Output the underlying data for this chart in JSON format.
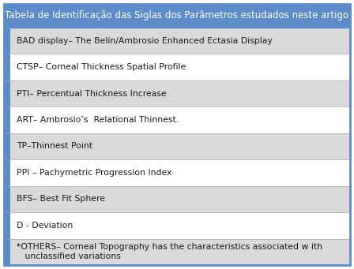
{
  "title": "Tabela de Identificação das Siglas dos Parâmetros estudados neste artigo",
  "title_bg": "#5b8bc9",
  "title_color": "#ffffff",
  "left_bar_color": "#5b8bc9",
  "rows": [
    {
      "text": "BAD display– The Belin/Ambrosio Enhanced Ectasia Display",
      "bg": "#d9d9d9"
    },
    {
      "text": "CTSP– Corneal Thickness Spatial Profile",
      "bg": "#ffffff"
    },
    {
      "text": "PTI– Percentual Thickness Increase",
      "bg": "#d9d9d9"
    },
    {
      "text": "ART– Ambrosio’s  Relational Thinnest.",
      "bg": "#ffffff"
    },
    {
      "text": "TP–Thinnest Point",
      "bg": "#d9d9d9"
    },
    {
      "text": "PPI – Pachymetric Progression Index",
      "bg": "#ffffff"
    },
    {
      "text": "BFS– Best Fit Sphere",
      "bg": "#d9d9d9"
    },
    {
      "text": "D - Deviation",
      "bg": "#ffffff"
    },
    {
      "text": "*OTHERS– Corneal Topography has the characteristics associated w ith\n   unclassified variations",
      "bg": "#d9d9d9"
    }
  ],
  "border_color": "#5b8bc9",
  "text_color": "#1a1a1a",
  "font_size": 7.8,
  "title_font_size": 8.5
}
